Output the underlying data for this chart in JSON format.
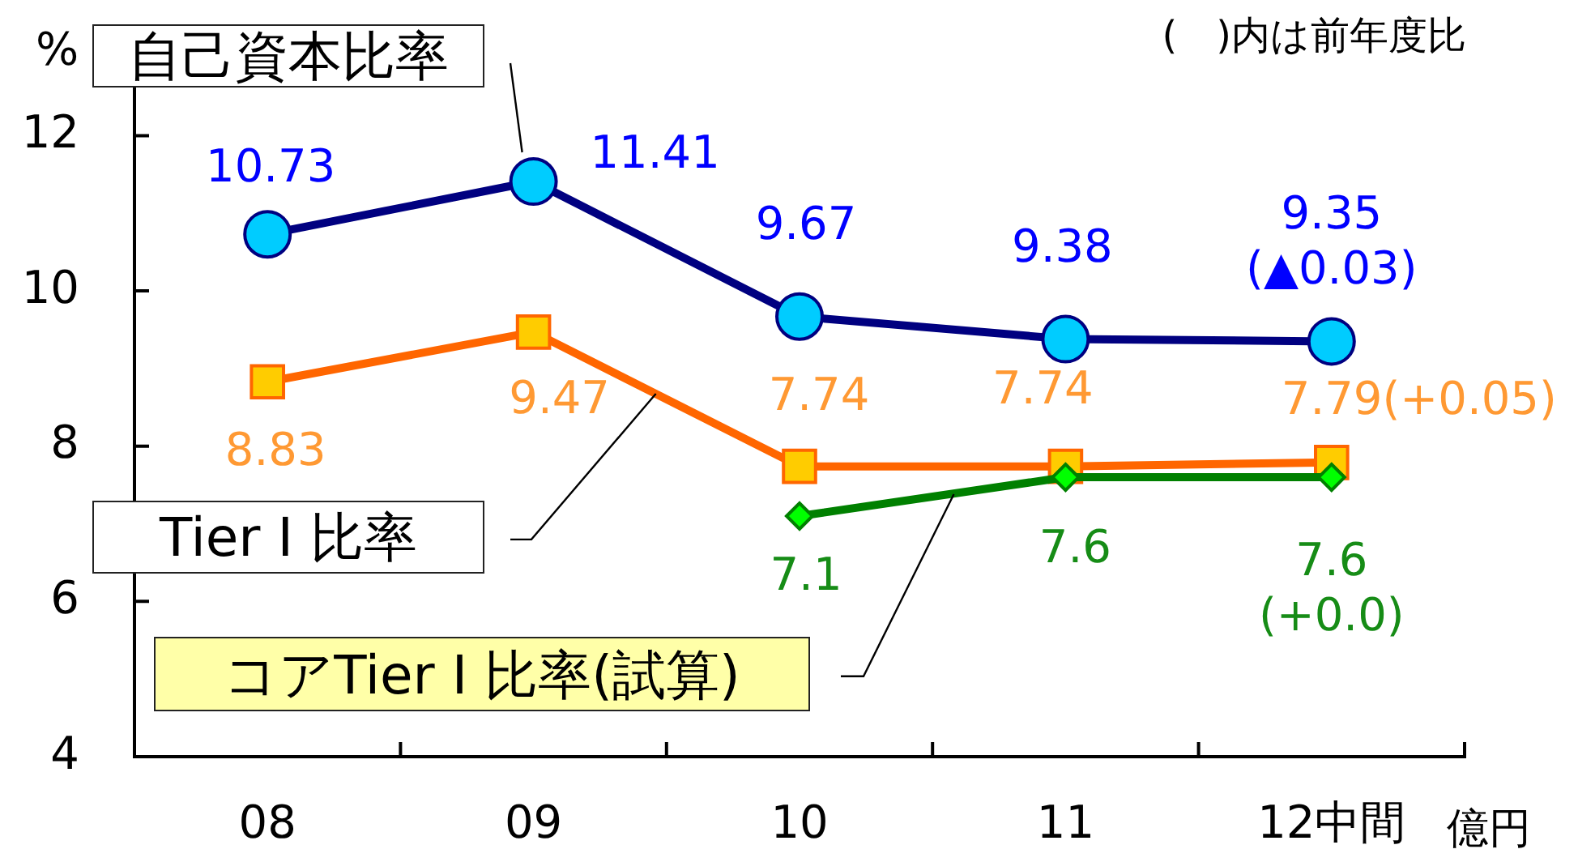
{
  "chart_data": {
    "type": "line",
    "ylabel": "%",
    "annotations": [
      "(　)内は前年度比",
      "億円"
    ],
    "categories": [
      "08",
      "09",
      "10",
      "11",
      "12中間"
    ],
    "series": [
      {
        "name": "自己資本比率",
        "color": "#000080",
        "colors": [
          "#00ccff",
          "#00ccff",
          "#00ccff",
          "#00ccff",
          "#00ccff"
        ],
        "marker": "circle",
        "values": [
          10.73,
          11.41,
          9.67,
          9.38,
          9.35
        ],
        "value_labels": [
          "10.73",
          "11.41",
          "9.67",
          "9.38",
          "9.35\n(▲0.03)"
        ]
      },
      {
        "name": "Tier Ⅰ 比率",
        "color": "#ff6600",
        "colors": [
          "#ffcc00",
          "#ffcc00",
          "#ffcc00",
          "#ffcc00",
          "#ffcc00"
        ],
        "marker": "square",
        "values": [
          8.83,
          9.47,
          7.74,
          7.74,
          7.79
        ],
        "value_labels": [
          "8.83",
          "9.47",
          "7.74",
          "7.74",
          "7.79(+0.05)"
        ]
      },
      {
        "name": "コアTier Ⅰ 比率(試算)",
        "color": "#008000",
        "colors": [
          null,
          null,
          "#00ff00",
          "#00ff00",
          "#00ff00"
        ],
        "marker": "diamond",
        "values": [
          null,
          null,
          7.1,
          7.6,
          7.6
        ],
        "value_labels": [
          null,
          null,
          "7.1",
          "7.6",
          "7.6\n(+0.0)"
        ]
      }
    ],
    "ylim": [
      4,
      12.6
    ],
    "yticks": [
      4,
      6,
      8,
      10,
      12
    ],
    "legend": false
  }
}
